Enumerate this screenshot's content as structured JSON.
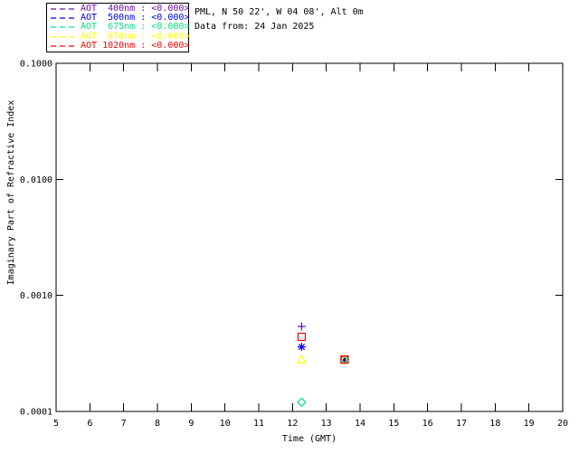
{
  "header": {
    "line1": "PML, N 50 22', W 04 08', Alt 0m",
    "line2": "Data from: 24 Jan 2025"
  },
  "legend": {
    "entries": [
      {
        "label": "AOT  400nm : <0.000>",
        "color": "#6A0DAD",
        "symbol": "plus"
      },
      {
        "label": "AOT  500nm : <0.000>",
        "color": "#0000FF",
        "symbol": "asterisk"
      },
      {
        "label": "AOT  675nm : <0.000>",
        "color": "#00E67A",
        "symbol": "diamond"
      },
      {
        "label": "AOT  870nm : <0.000>",
        "color": "#FFFF00",
        "symbol": "triangle"
      },
      {
        "label": "AOT 1020nm : <0.000>",
        "color": "#FF0000",
        "symbol": "square"
      }
    ]
  },
  "chart_data": {
    "type": "scatter",
    "title": "",
    "xlabel": "Time (GMT)",
    "ylabel": "Imaginary Part of Refractive Index",
    "xlim": [
      5,
      20
    ],
    "ylim": [
      0.0001,
      0.1
    ],
    "y_scale": "log",
    "grid": false,
    "legend_position": "top-left-outside",
    "x_ticks": [
      5,
      6,
      7,
      8,
      9,
      10,
      11,
      12,
      13,
      14,
      15,
      16,
      17,
      18,
      19,
      20
    ],
    "y_ticks": [
      {
        "value": 0.1,
        "label": "0.1000"
      },
      {
        "value": 0.01,
        "label": "0.0100"
      },
      {
        "value": 0.001,
        "label": "0.0010"
      },
      {
        "value": 0.0001,
        "label": "0.0001"
      }
    ],
    "series": [
      {
        "name": "AOT 400nm",
        "color": "#6A0DAD",
        "symbol": "plus",
        "points": [
          {
            "x": 12.27,
            "y": 0.00054
          },
          {
            "x": 13.54,
            "y": 0.00028
          }
        ]
      },
      {
        "name": "AOT 500nm",
        "color": "#0000FF",
        "symbol": "asterisk",
        "points": [
          {
            "x": 12.27,
            "y": 0.00036
          },
          {
            "x": 13.54,
            "y": 0.00028
          }
        ]
      },
      {
        "name": "AOT 675nm",
        "color": "#00E67A",
        "symbol": "diamond",
        "points": [
          {
            "x": 12.27,
            "y": 0.00012
          },
          {
            "x": 13.54,
            "y": 0.00028
          }
        ]
      },
      {
        "name": "AOT 870nm",
        "color": "#FFFF00",
        "symbol": "triangle",
        "points": [
          {
            "x": 12.27,
            "y": 0.00028
          },
          {
            "x": 13.54,
            "y": 0.00028
          }
        ]
      },
      {
        "name": "AOT 1020nm",
        "color": "#FF0000",
        "symbol": "square",
        "points": [
          {
            "x": 12.27,
            "y": 0.00044
          },
          {
            "x": 13.54,
            "y": 0.00028
          }
        ]
      }
    ]
  }
}
